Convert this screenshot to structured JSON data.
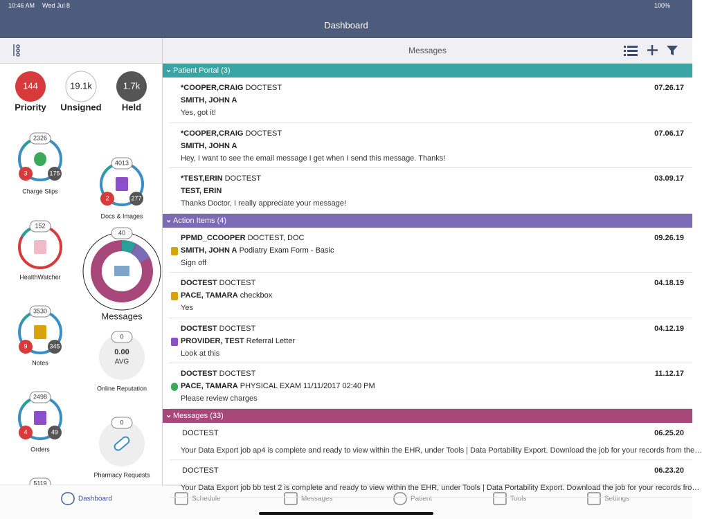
{
  "status_bar": {
    "time": "10:46 AM",
    "date": "Wed Jul 8",
    "battery": "100%"
  },
  "header": {
    "title": "Dashboard"
  },
  "toolbar": {
    "title": "Messages"
  },
  "summary": [
    {
      "value": 144,
      "label": "Priority"
    },
    {
      "value": "19.1k",
      "label": "Unsigned"
    },
    {
      "value": "1.7k",
      "label": "Held"
    }
  ],
  "widgets": [
    {
      "label": "Charge Slips",
      "total": 2326,
      "urgent": 3,
      "pending": 175
    },
    {
      "label": "Docs & Images",
      "total": 4013,
      "urgent": 2,
      "pending": 277
    },
    {
      "label": "HealthWatcher",
      "total": 152
    },
    {
      "label": "Notes",
      "total": 3530,
      "urgent": 9,
      "pending": 345
    },
    {
      "label": "Orders",
      "total": 2498,
      "urgent": 4,
      "pending": 49
    }
  ],
  "messages_widget": {
    "label": "Messages",
    "total": 40
  },
  "reputation": {
    "label": "Online Reputation",
    "total": 0,
    "score": "0.00",
    "unit": "AVG"
  },
  "pharmacy": {
    "label": "Pharmacy Requests",
    "total": 0
  },
  "partial_widget": {
    "total": 5119
  },
  "sections": [
    {
      "title": "Patient Portal (3)",
      "items": [
        {
          "from": "*COOPER,CRAIG",
          "role": "DOCTEST",
          "date": "07.26.17",
          "patient": "SMITH, JOHN A",
          "preview": "Yes, got it!"
        },
        {
          "from": "*COOPER,CRAIG",
          "role": "DOCTEST",
          "date": "07.06.17",
          "patient": "SMITH, JOHN A",
          "preview": "Hey, I want to see the email message I get when I send this message.  Thanks!"
        },
        {
          "from": "*TEST,ERIN",
          "role": "DOCTEST",
          "date": "03.09.17",
          "patient": "TEST, ERIN",
          "preview": "Thanks Doctor, I really appreciate your message!"
        }
      ]
    },
    {
      "title": "Action Items (4)",
      "items": [
        {
          "from": "PPMD_CCOOPER",
          "role": "DOCTEST, DOC",
          "date": "09.26.19",
          "patient": "SMITH, JOHN A",
          "subject": "Podiatry Exam Form - Basic",
          "preview": "Sign off"
        },
        {
          "from": "DOCTEST",
          "role": "DOCTEST",
          "date": "04.18.19",
          "patient": "PACE, TAMARA",
          "subject": "checkbox",
          "preview": "Yes"
        },
        {
          "from": "DOCTEST",
          "role": "DOCTEST",
          "date": "04.12.19",
          "patient": "PROVIDER, TEST",
          "subject": "Referral Letter",
          "preview": "Look at this"
        },
        {
          "from": "DOCTEST",
          "role": "DOCTEST",
          "date": "11.12.17",
          "patient": "PACE, TAMARA",
          "subject": "PHYSICAL EXAM 11/11/2017 02:40 PM",
          "preview": "Please review charges"
        }
      ]
    },
    {
      "title": "Messages (33)",
      "items": [
        {
          "role": "DOCTEST",
          "date": "06.25.20",
          "preview": "Your Data Export job ap4 is complete and ready to view within the EHR, under Tools | Data Portability Export. Download the job for your records from the…"
        },
        {
          "role": "DOCTEST",
          "date": "06.23.20",
          "preview": "Your Data Export job bb test 2 is complete and ready to view within the EHR, under Tools | Data Portability Export. Download the job for your records fro…"
        }
      ]
    }
  ],
  "tabs": [
    "Dashboard",
    "Schedule",
    "Messages",
    "Patient",
    "Tools",
    "Settings"
  ]
}
